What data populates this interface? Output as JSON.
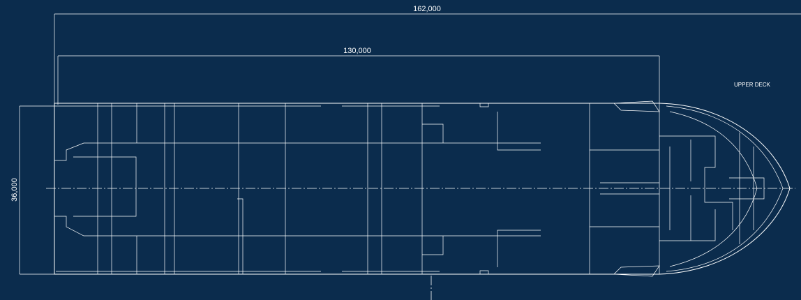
{
  "drawing": {
    "title": "UPPER DECK",
    "overall_length": "162,000",
    "deck_length": "130,000",
    "breadth": "36,000"
  }
}
